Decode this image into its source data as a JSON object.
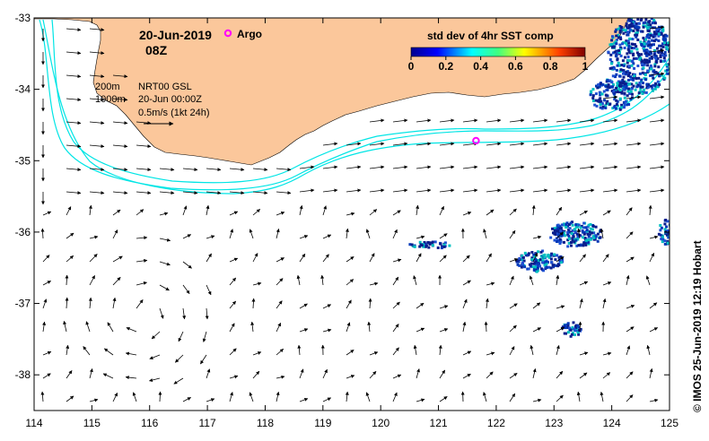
{
  "title": {
    "date": "20-Jun-2019",
    "time": "08Z",
    "argo_label": "Argo"
  },
  "legend": {
    "contour_200": "200m",
    "contour_1000": "1000m",
    "product": "NRT00 GSL",
    "product_time": "20-Jun 00:00Z",
    "scale": "0.5m/s (1kt 24h)"
  },
  "colorbar": {
    "title": "std dev of 4hr SST comp",
    "ticks": [
      "0",
      "0.2",
      "0.4",
      "0.6",
      "0.8",
      "1"
    ],
    "range": [
      0,
      1
    ]
  },
  "axes": {
    "x_ticks": [
      "114",
      "115",
      "116",
      "117",
      "118",
      "119",
      "120",
      "121",
      "122",
      "123",
      "124",
      "125"
    ],
    "y_ticks": [
      "-33",
      "-34",
      "-35",
      "-36",
      "-37",
      "-38"
    ],
    "lon_range": [
      114,
      125
    ],
    "lat_range": [
      -38.5,
      -33
    ]
  },
  "credit": "© IMOS 25-Jun-2019 12:19 Hobart",
  "argo_float": {
    "lon": 121.65,
    "lat": -34.72
  },
  "colors": {
    "land": "#fbc79b",
    "contour": "#00e5e5",
    "argo": "#ff00ff",
    "sst_deep": "#0a1e8c",
    "sst_mid": "#1e50d2",
    "sst_high": "#00c0c0"
  }
}
